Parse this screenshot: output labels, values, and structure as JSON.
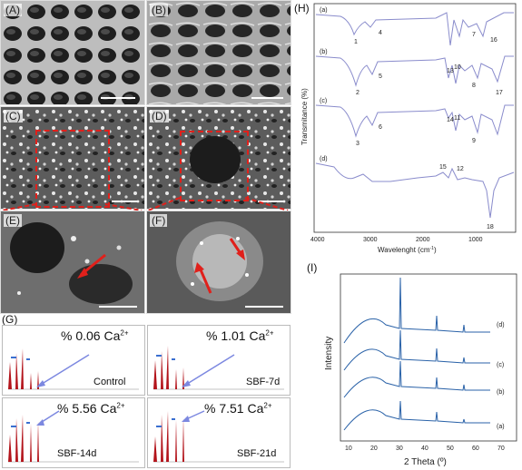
{
  "sem_panels": {
    "A": "(A)",
    "B": "(B)",
    "C": "(C)",
    "D": "(D)",
    "E": "(E)",
    "F": "(F)"
  },
  "eds": {
    "panel_label": "(G)",
    "plots": [
      {
        "pct": "% 0.06 Ca",
        "name": "Control"
      },
      {
        "pct": "% 1.01 Ca",
        "name": "SBF-7d"
      },
      {
        "pct": "% 5.56 Ca",
        "name": "SBF-14d"
      },
      {
        "pct": "% 7.51 Ca",
        "name": "SBF-21d"
      }
    ],
    "charge": "2+",
    "colors": {
      "peak": "#b3141b",
      "arrow": "#7c88e0"
    }
  },
  "ftir": {
    "panel_label": "(H)",
    "ylabel": "Transmitance (%)",
    "xlabel": "Wavelenght (cm",
    "xlabel_sup": "-1",
    "xlabel_tail": ")",
    "xticks": [
      "4000",
      "3000",
      "2000",
      "1000"
    ],
    "curves": [
      "(a)",
      "(b)",
      "(c)",
      "(d)"
    ],
    "peaks": [
      "1",
      "2",
      "3",
      "4",
      "5",
      "6",
      "7",
      "8",
      "9",
      "10",
      "11",
      "12",
      "13",
      "14",
      "15",
      "16",
      "17",
      "18"
    ],
    "color": "#8a8ccc"
  },
  "xrd": {
    "panel_label": "(I)",
    "ylabel": "Intensity",
    "xlabel": "2 Theta (º)",
    "xticks": [
      "10",
      "20",
      "30",
      "40",
      "50",
      "60",
      "70"
    ],
    "curves": [
      "(d)",
      "(c)",
      "(b)",
      "(a)"
    ],
    "color": "#2a62a8"
  }
}
